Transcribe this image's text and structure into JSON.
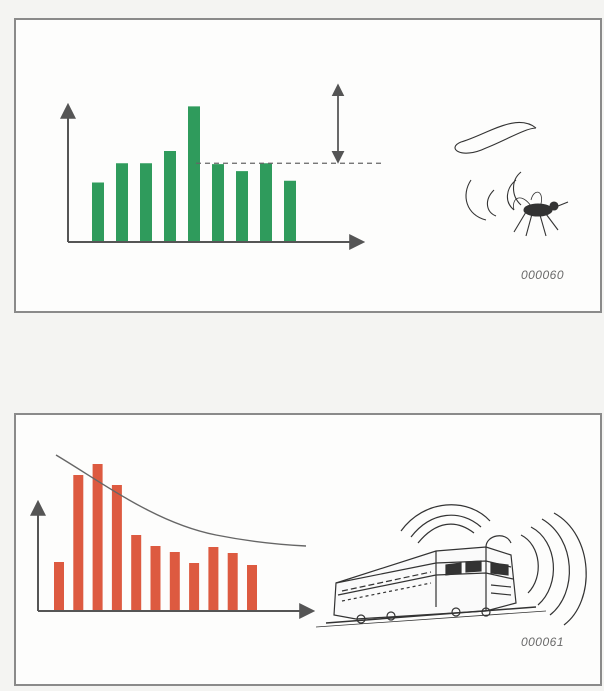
{
  "figures": [
    {
      "code": "000060"
    },
    {
      "code": "000061"
    }
  ],
  "chart_data": [
    {
      "type": "bar",
      "values": [
        68,
        90,
        90,
        104,
        155,
        89,
        81,
        90,
        70
      ],
      "threshold_line": 90,
      "color": "#2f9b5c",
      "title": "",
      "xlabel": "",
      "ylabel": ""
    },
    {
      "type": "bar",
      "values": [
        49,
        136,
        147,
        126,
        76,
        65,
        59,
        48,
        64,
        58,
        46
      ],
      "trend": "decreasing-curve",
      "color": "#dd5a40",
      "title": "",
      "xlabel": "",
      "ylabel": ""
    }
  ],
  "colors": {
    "axis": "#555555",
    "line": "#666666",
    "drawing": "#333333"
  },
  "icons": {
    "top": "mosquito-icon",
    "bottom": "train-icon"
  }
}
